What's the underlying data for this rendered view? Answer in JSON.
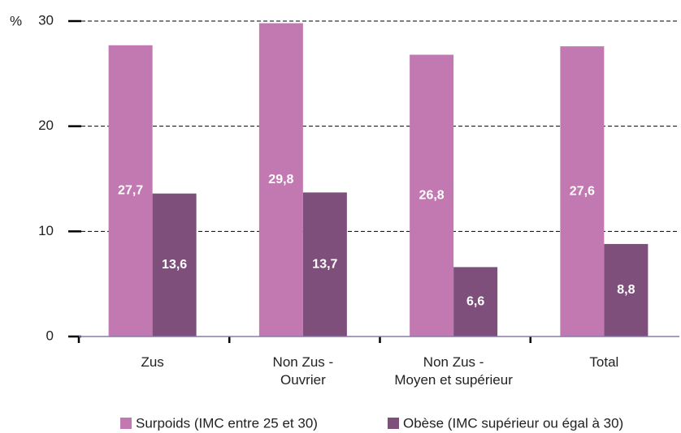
{
  "chart_data": {
    "type": "bar",
    "y_label": "%",
    "categories": [
      "Zus",
      "Non Zus -\nOuvrier",
      "Non Zus -\nMoyen et supérieur",
      "Total"
    ],
    "series": [
      {
        "name": "Surpoids (IMC entre 25 et 30)",
        "color": "#c279b1",
        "values": [
          27.7,
          29.8,
          26.8,
          27.6
        ],
        "value_labels": [
          "27,7",
          "29,8",
          "26,8",
          "27,6"
        ]
      },
      {
        "name": "Obèse (IMC supérieur ou égal à 30)",
        "color": "#7f4f7c",
        "values": [
          13.6,
          13.7,
          6.6,
          8.8
        ],
        "value_labels": [
          "13,6",
          "13,7",
          "6,6",
          "8,8"
        ]
      }
    ],
    "ylim": [
      0,
      30
    ],
    "yticks": [
      0,
      10,
      20,
      30
    ],
    "grid": true
  }
}
